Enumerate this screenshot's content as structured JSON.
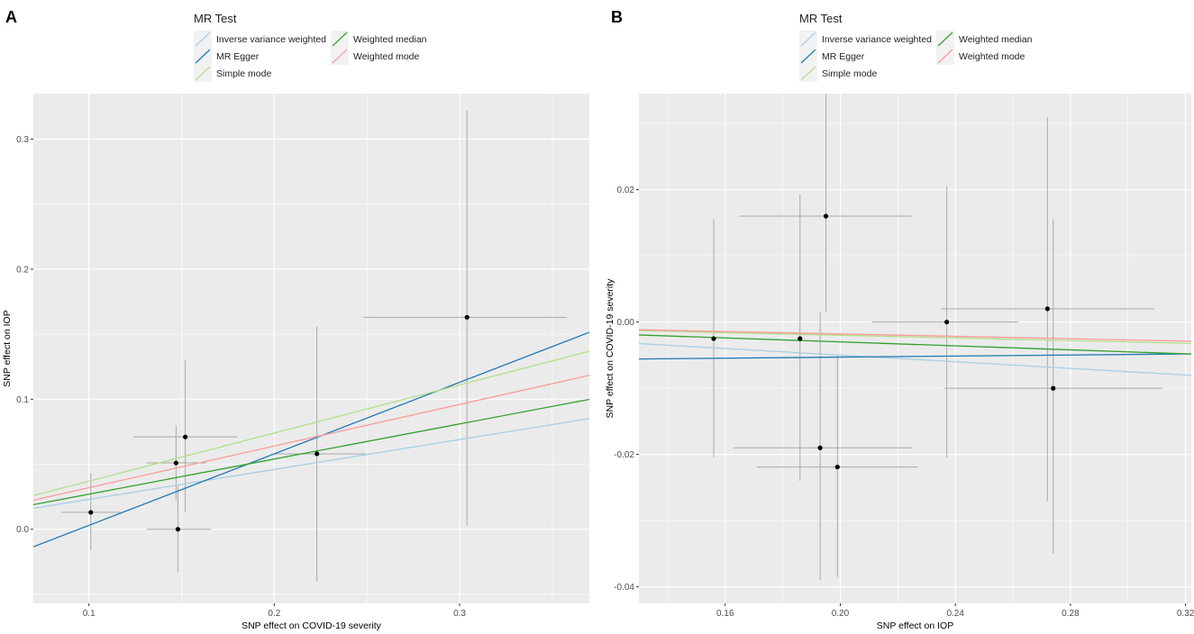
{
  "colors": {
    "Inverse variance weighted": "#a6cee3",
    "MR Egger": "#1f78b4",
    "Simple mode": "#b2df8a",
    "Weighted median": "#33a02c",
    "Weighted mode": "#fb9a99",
    "panel_bg": "#ebebeb",
    "grid": "#ffffff",
    "errorbar": "#aaaaaa",
    "point": "#000000"
  },
  "chart_data": [
    {
      "type": "scatter",
      "panel": "A",
      "xlabel": "SNP effect on COVID-19 severity",
      "ylabel": "SNP effect on IOP",
      "xlim": [
        0.07,
        0.37
      ],
      "ylim": [
        -0.057,
        0.335
      ],
      "xticks": [
        0.1,
        0.2,
        0.3
      ],
      "xtick_labels": [
        "0.1",
        "0.2",
        "0.3"
      ],
      "yticks": [
        0.0,
        0.1,
        0.2,
        0.3
      ],
      "ytick_labels": [
        "0.0",
        "0.1",
        "0.2",
        "0.3"
      ],
      "legend_title": "MR Test",
      "legend_entries": [
        "Inverse variance weighted",
        "Weighted median",
        "MR Egger",
        "Weighted mode",
        "Simple mode"
      ],
      "points": [
        {
          "x": 0.101,
          "y": 0.013,
          "xmin": 0.085,
          "xmax": 0.117,
          "ymin": -0.016,
          "ymax": 0.043
        },
        {
          "x": 0.148,
          "y": 0.0,
          "xmin": 0.131,
          "xmax": 0.166,
          "ymin": -0.033,
          "ymax": 0.033
        },
        {
          "x": 0.147,
          "y": 0.051,
          "xmin": 0.131,
          "xmax": 0.163,
          "ymin": 0.022,
          "ymax": 0.08
        },
        {
          "x": 0.152,
          "y": 0.071,
          "xmin": 0.124,
          "xmax": 0.18,
          "ymin": 0.013,
          "ymax": 0.13
        },
        {
          "x": 0.223,
          "y": 0.058,
          "xmin": 0.2,
          "xmax": 0.249,
          "ymin": -0.04,
          "ymax": 0.156
        },
        {
          "x": 0.304,
          "y": 0.163,
          "xmin": 0.248,
          "xmax": 0.358,
          "ymin": 0.003,
          "ymax": 0.322
        }
      ],
      "lines": [
        {
          "method": "Inverse variance weighted",
          "intercept": 0.0,
          "slope": 0.23
        },
        {
          "method": "MR Egger",
          "intercept": -0.052,
          "slope": 0.55
        },
        {
          "method": "Simple mode",
          "intercept": 0.0,
          "slope": 0.37
        },
        {
          "method": "Weighted median",
          "intercept": 0.0,
          "slope": 0.27
        },
        {
          "method": "Weighted mode",
          "intercept": 0.0,
          "slope": 0.32
        }
      ]
    },
    {
      "type": "scatter",
      "panel": "B",
      "xlabel": "SNP effect on IOP",
      "ylabel": "SNP effect on COVID-19 severity",
      "xlim": [
        0.13,
        0.322
      ],
      "ylim": [
        -0.0425,
        0.0345
      ],
      "xticks": [
        0.16,
        0.2,
        0.24,
        0.28,
        0.32
      ],
      "xtick_labels": [
        "0.16",
        "0.20",
        "0.24",
        "0.28",
        "0.32"
      ],
      "yticks": [
        -0.04,
        -0.02,
        0.0,
        0.02
      ],
      "ytick_labels": [
        "-0.04",
        "-0.02",
        "0.00",
        "0.02"
      ],
      "legend_title": "MR Test",
      "legend_entries": [
        "Inverse variance weighted",
        "Weighted median",
        "MR Egger",
        "Weighted mode",
        "Simple mode"
      ],
      "points": [
        {
          "x": 0.156,
          "y": -0.0025,
          "xmin": 0.156,
          "xmax": 0.156,
          "ymin": -0.0205,
          "ymax": 0.0155
        },
        {
          "x": 0.186,
          "y": -0.0025,
          "xmin": 0.186,
          "xmax": 0.186,
          "ymin": -0.024,
          "ymax": 0.0193
        },
        {
          "x": 0.195,
          "y": 0.016,
          "xmin": 0.165,
          "xmax": 0.225,
          "ymin": 0.0016,
          "ymax": 0.0345
        },
        {
          "x": 0.193,
          "y": -0.019,
          "xmin": 0.163,
          "xmax": 0.225,
          "ymin": -0.039,
          "ymax": 0.0016
        },
        {
          "x": 0.199,
          "y": -0.0219,
          "xmin": 0.171,
          "xmax": 0.227,
          "ymin": -0.0385,
          "ymax": -0.005
        },
        {
          "x": 0.237,
          "y": 0.0,
          "xmin": 0.211,
          "xmax": 0.262,
          "ymin": -0.0205,
          "ymax": 0.0205
        },
        {
          "x": 0.272,
          "y": 0.002,
          "xmin": 0.235,
          "xmax": 0.309,
          "ymin": -0.027,
          "ymax": 0.031
        },
        {
          "x": 0.274,
          "y": -0.01,
          "xmin": 0.236,
          "xmax": 0.312,
          "ymin": -0.035,
          "ymax": 0.0155
        }
      ],
      "lines": [
        {
          "method": "Inverse variance weighted",
          "intercept": 0.0,
          "slope": -0.025
        },
        {
          "method": "MR Egger",
          "intercept": -0.0061,
          "slope": 0.004
        },
        {
          "method": "Simple mode",
          "intercept": 0.0,
          "slope": -0.01
        },
        {
          "method": "Weighted median",
          "intercept": 0.0,
          "slope": -0.015
        },
        {
          "method": "Weighted mode",
          "intercept": 0.0,
          "slope": -0.009
        }
      ]
    }
  ]
}
